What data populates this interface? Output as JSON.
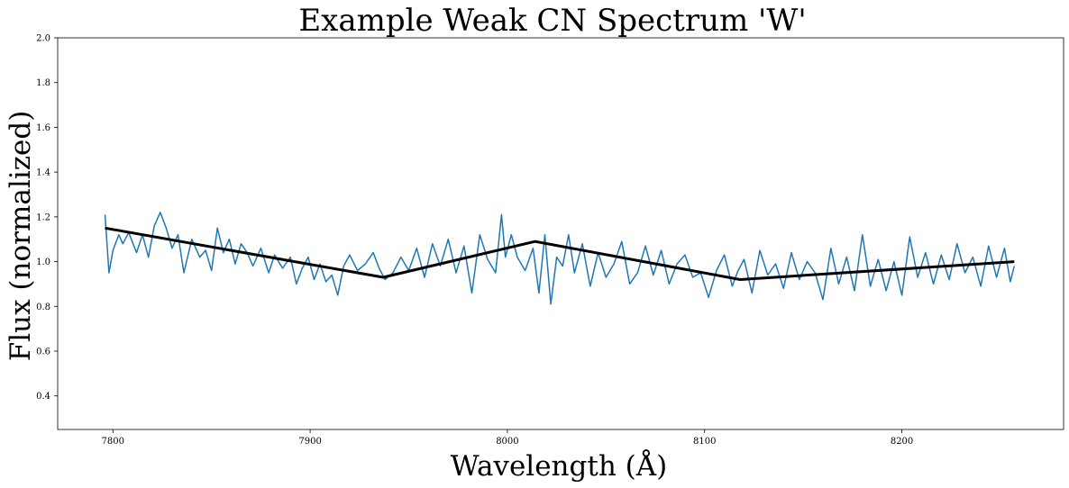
{
  "chart_data": {
    "type": "line",
    "title": "Example Weak CN Spectrum 'W'",
    "xlabel": "Wavelength (Å)",
    "ylabel": "Flux (normalized)",
    "xlim": [
      7772,
      8282
    ],
    "ylim": [
      0.25,
      2.0
    ],
    "xticks": [
      {
        "value": 7800,
        "label": "7800"
      },
      {
        "value": 7900,
        "label": "7900"
      },
      {
        "value": 8000,
        "label": "8000"
      },
      {
        "value": 8100,
        "label": "8100"
      },
      {
        "value": 8200,
        "label": "8200"
      }
    ],
    "yticks": [
      {
        "value": 0.4,
        "label": "0.4"
      },
      {
        "value": 0.6,
        "label": "0.6"
      },
      {
        "value": 0.8,
        "label": "0.8"
      },
      {
        "value": 1.0,
        "label": "1.0"
      },
      {
        "value": 1.2,
        "label": "1.2"
      },
      {
        "value": 1.4,
        "label": "1.4"
      },
      {
        "value": 1.6,
        "label": "1.6"
      },
      {
        "value": 1.8,
        "label": "1.8"
      },
      {
        "value": 2.0,
        "label": "2.0"
      }
    ],
    "grid": false,
    "series": [
      {
        "color": "#1f77b4",
        "x": [
          7796,
          7798,
          7800,
          7803,
          7805,
          7808,
          7812,
          7815,
          7818,
          7821,
          7824,
          7827,
          7830,
          7833,
          7836,
          7840,
          7844,
          7847,
          7850,
          7853,
          7856,
          7859,
          7862,
          7865,
          7868,
          7871,
          7875,
          7879,
          7882,
          7886,
          7890,
          7893,
          7896,
          7899,
          7902,
          7905,
          7908,
          7911,
          7914,
          7917,
          7920,
          7924,
          7928,
          7932,
          7935,
          7938,
          7942,
          7946,
          7950,
          7954,
          7958,
          7962,
          7966,
          7970,
          7974,
          7978,
          7982,
          7986,
          7990,
          7994,
          7997,
          7999,
          8002,
          8005,
          8009,
          8013,
          8016,
          8019,
          8022,
          8025,
          8028,
          8031,
          8034,
          8038,
          8042,
          8046,
          8050,
          8054,
          8058,
          8062,
          8066,
          8070,
          8074,
          8078,
          8082,
          8086,
          8090,
          8094,
          8098,
          8102,
          8106,
          8110,
          8114,
          8117,
          8120,
          8124,
          8128,
          8132,
          8136,
          8140,
          8144,
          8148,
          8152,
          8156,
          8160,
          8164,
          8168,
          8172,
          8176,
          8180,
          8184,
          8188,
          8192,
          8196,
          8200,
          8204,
          8208,
          8212,
          8216,
          8220,
          8224,
          8228,
          8232,
          8236,
          8240,
          8244,
          8248,
          8252,
          8255,
          8257
        ],
        "values": [
          1.21,
          0.95,
          1.05,
          1.12,
          1.08,
          1.13,
          1.04,
          1.12,
          1.02,
          1.16,
          1.22,
          1.15,
          1.06,
          1.12,
          0.95,
          1.1,
          1.02,
          1.05,
          0.96,
          1.15,
          1.04,
          1.1,
          0.99,
          1.08,
          1.04,
          0.98,
          1.06,
          0.95,
          1.03,
          0.97,
          1.02,
          0.9,
          0.97,
          1.02,
          0.92,
          0.99,
          0.91,
          0.94,
          0.85,
          0.98,
          1.03,
          0.96,
          0.99,
          1.04,
          0.97,
          0.92,
          0.95,
          1.02,
          0.96,
          1.06,
          0.93,
          1.08,
          0.98,
          1.1,
          0.95,
          1.07,
          0.86,
          1.12,
          1.01,
          0.95,
          1.21,
          1.02,
          1.12,
          1.02,
          0.96,
          1.06,
          0.86,
          1.12,
          0.81,
          1.02,
          0.98,
          1.12,
          0.95,
          1.08,
          0.89,
          1.04,
          0.93,
          0.99,
          1.09,
          0.9,
          0.95,
          1.07,
          0.94,
          1.05,
          0.9,
          0.99,
          1.03,
          0.93,
          0.95,
          0.84,
          0.96,
          1.03,
          0.89,
          0.96,
          1.01,
          0.86,
          1.05,
          0.94,
          0.99,
          0.88,
          1.04,
          0.92,
          1.0,
          0.95,
          0.83,
          1.06,
          0.9,
          1.02,
          0.87,
          1.12,
          0.89,
          1.01,
          0.87,
          1.0,
          0.85,
          1.11,
          0.93,
          1.04,
          0.9,
          1.03,
          0.92,
          1.08,
          0.95,
          1.02,
          0.89,
          1.07,
          0.93,
          1.06,
          0.91,
          0.98
        ]
      },
      {
        "color": "#000000",
        "x": [
          7796,
          7937,
          8014,
          8118,
          8257
        ],
        "values": [
          1.15,
          0.93,
          1.09,
          0.92,
          1.0
        ]
      }
    ]
  }
}
